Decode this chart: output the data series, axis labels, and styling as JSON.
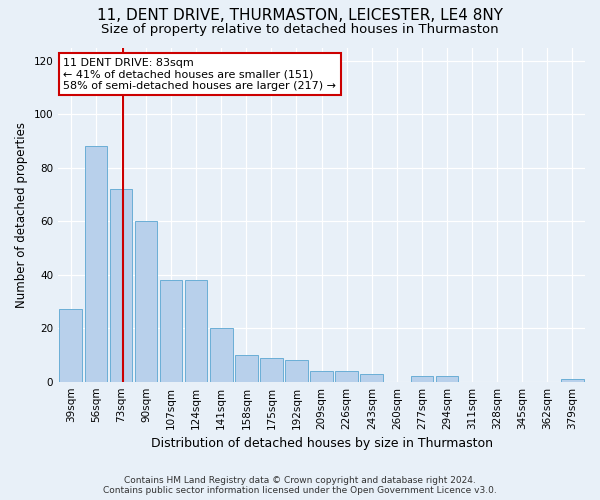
{
  "title1": "11, DENT DRIVE, THURMASTON, LEICESTER, LE4 8NY",
  "title2": "Size of property relative to detached houses in Thurmaston",
  "xlabel": "Distribution of detached houses by size in Thurmaston",
  "ylabel": "Number of detached properties",
  "categories": [
    "39sqm",
    "56sqm",
    "73sqm",
    "90sqm",
    "107sqm",
    "124sqm",
    "141sqm",
    "158sqm",
    "175sqm",
    "192sqm",
    "209sqm",
    "226sqm",
    "243sqm",
    "260sqm",
    "277sqm",
    "294sqm",
    "311sqm",
    "328sqm",
    "345sqm",
    "362sqm",
    "379sqm"
  ],
  "values": [
    27,
    88,
    72,
    60,
    38,
    38,
    20,
    10,
    9,
    8,
    4,
    4,
    3,
    0,
    2,
    2,
    0,
    0,
    0,
    0,
    1
  ],
  "bar_color": "#b8d0eb",
  "bar_edge_color": "#6aaed6",
  "ylim": [
    0,
    125
  ],
  "yticks": [
    0,
    20,
    40,
    60,
    80,
    100,
    120
  ],
  "property_size_label": "11 DENT DRIVE: 83sqm",
  "annotation_line1": "← 41% of detached houses are smaller (151)",
  "annotation_line2": "58% of semi-detached houses are larger (217) →",
  "vline_color": "#cc0000",
  "annotation_box_color": "#ffffff",
  "annotation_box_edge": "#cc0000",
  "footer1": "Contains HM Land Registry data © Crown copyright and database right 2024.",
  "footer2": "Contains public sector information licensed under the Open Government Licence v3.0.",
  "bg_color": "#e8f0f8",
  "grid_color": "#ffffff",
  "title1_fontsize": 11,
  "title2_fontsize": 9.5,
  "ylabel_fontsize": 8.5,
  "xlabel_fontsize": 9,
  "tick_fontsize": 7.5,
  "footer_fontsize": 6.5,
  "ann_fontsize": 8
}
